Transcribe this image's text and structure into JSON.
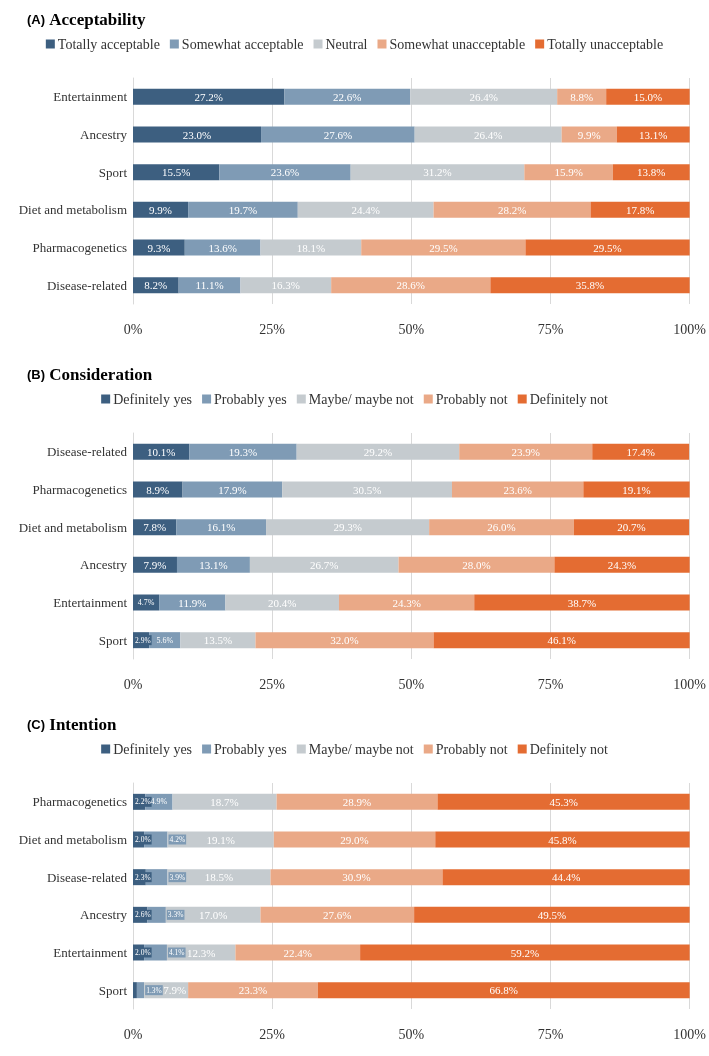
{
  "chart_data": [
    {
      "type": "bar",
      "title": "(A) Acceptability",
      "orientation": "horizontal",
      "stacked": true,
      "legend": "top",
      "grid": "x",
      "categories": [
        "Entertainment",
        "Ancestry",
        "Sport",
        "Diet and metabolism",
        "Pharmacogenetics",
        "Disease-related"
      ],
      "xlim": [
        0,
        100
      ],
      "xticks": [
        {
          "value": 0,
          "label": "0%"
        },
        {
          "value": 25,
          "label": "25%"
        },
        {
          "value": 50,
          "label": "50%"
        },
        {
          "value": 75,
          "label": "75%"
        },
        {
          "value": 100,
          "label": "100%"
        }
      ],
      "series": [
        {
          "name": "Totally acceptable",
          "color": "#3d5f80",
          "values": [
            27.2,
            23.0,
            15.5,
            9.9,
            9.3,
            8.2
          ],
          "value_labels": [
            "27.2%",
            "23.0%",
            "15.5%",
            "9.9%",
            "9.3%",
            "8.2%"
          ]
        },
        {
          "name": "Somewhat acceptable",
          "color": "#7f9bb5",
          "values": [
            22.6,
            27.6,
            23.6,
            19.7,
            13.6,
            11.1
          ],
          "value_labels": [
            "22.6%",
            "27.6%",
            "23.6%",
            "19.7%",
            "13.6%",
            "11.1%"
          ]
        },
        {
          "name": "Neutral",
          "color": "#c5cbcf",
          "values": [
            26.4,
            26.4,
            31.2,
            24.4,
            18.1,
            16.3
          ],
          "value_labels": [
            "26.4%",
            "26.4%",
            "31.2%",
            "24.4%",
            "18.1%",
            "16.3%"
          ]
        },
        {
          "name": "Somewhat unacceptable",
          "color": "#eaa987",
          "values": [
            8.8,
            9.9,
            15.9,
            28.2,
            29.5,
            28.6
          ],
          "value_labels": [
            "8.8%",
            "9.9%",
            "15.9%",
            "28.2%",
            "29.5%",
            "28.6%"
          ]
        },
        {
          "name": "Totally unacceptable",
          "color": "#e46c32",
          "values": [
            15.0,
            13.1,
            13.8,
            17.8,
            29.5,
            35.8
          ],
          "value_labels": [
            "15.0%",
            "13.1%",
            "13.8%",
            "17.8%",
            "29.5%",
            "35.8%"
          ]
        }
      ]
    },
    {
      "type": "bar",
      "title": "(B) Consideration",
      "orientation": "horizontal",
      "stacked": true,
      "legend": "top",
      "grid": "x",
      "categories": [
        "Disease-related",
        "Pharmacogenetics",
        "Diet and metabolism",
        "Ancestry",
        "Entertainment",
        "Sport"
      ],
      "xlim": [
        0,
        100
      ],
      "xticks": [
        {
          "value": 0,
          "label": "0%"
        },
        {
          "value": 25,
          "label": "25%"
        },
        {
          "value": 50,
          "label": "50%"
        },
        {
          "value": 75,
          "label": "75%"
        },
        {
          "value": 100,
          "label": "100%"
        }
      ],
      "series": [
        {
          "name": "Definitely yes",
          "color": "#3d5f80",
          "values": [
            10.1,
            8.9,
            7.8,
            7.9,
            4.7,
            2.9
          ],
          "value_labels": [
            "10.1%",
            "8.9%",
            "7.8%",
            "7.9%",
            "4.7%",
            "2.9%"
          ]
        },
        {
          "name": "Probably yes",
          "color": "#7f9bb5",
          "values": [
            19.3,
            17.9,
            16.1,
            13.1,
            11.9,
            5.6
          ],
          "value_labels": [
            "19.3%",
            "17.9%",
            "16.1%",
            "13.1%",
            "11.9%",
            "5.6%"
          ]
        },
        {
          "name": "Maybe/ maybe not",
          "color": "#c5cbcf",
          "values": [
            29.2,
            30.5,
            29.3,
            26.7,
            20.4,
            13.5
          ],
          "value_labels": [
            "29.2%",
            "30.5%",
            "29.3%",
            "26.7%",
            "20.4%",
            "13.5%"
          ]
        },
        {
          "name": "Probably not",
          "color": "#eaa987",
          "values": [
            23.9,
            23.6,
            26.0,
            28.0,
            24.3,
            32.0
          ],
          "value_labels": [
            "23.9%",
            "23.6%",
            "26.0%",
            "28.0%",
            "24.3%",
            "32.0%"
          ]
        },
        {
          "name": "Definitely not",
          "color": "#e46c32",
          "values": [
            17.4,
            19.1,
            20.7,
            24.3,
            38.7,
            46.1
          ],
          "value_labels": [
            "17.4%",
            "19.1%",
            "20.7%",
            "24.3%",
            "38.7%",
            "46.1%"
          ]
        }
      ]
    },
    {
      "type": "bar",
      "title": "(C) Intention",
      "orientation": "horizontal",
      "stacked": true,
      "legend": "top",
      "grid": "x",
      "categories": [
        "Pharmacogenetics",
        "Diet and metabolism",
        "Disease-related",
        "Ancestry",
        "Entertainment",
        "Sport"
      ],
      "xlim": [
        0,
        100
      ],
      "xticks": [
        {
          "value": 0,
          "label": "0%"
        },
        {
          "value": 25,
          "label": "25%"
        },
        {
          "value": 50,
          "label": "50%"
        },
        {
          "value": 75,
          "label": "75%"
        },
        {
          "value": 100,
          "label": "100%"
        }
      ],
      "series": [
        {
          "name": "Definitely yes",
          "color": "#3d5f80",
          "values": [
            2.2,
            2.0,
            2.3,
            2.6,
            2.0,
            0.7
          ],
          "value_labels": [
            "2.2%",
            "2.0%",
            "2.3%",
            "2.6%",
            "2.0%",
            null
          ]
        },
        {
          "name": "Probably yes",
          "color": "#7f9bb5",
          "values": [
            4.9,
            4.2,
            3.9,
            3.3,
            4.1,
            1.3
          ],
          "value_labels": [
            "4.9%",
            "4.2%",
            "3.9%",
            "3.3%",
            "4.1%",
            "1.3%"
          ]
        },
        {
          "name": "Maybe/ maybe not",
          "color": "#c5cbcf",
          "values": [
            18.7,
            19.1,
            18.5,
            17.0,
            12.3,
            7.9
          ],
          "value_labels": [
            "18.7%",
            "19.1%",
            "18.5%",
            "17.0%",
            "12.3%",
            "7.9%"
          ]
        },
        {
          "name": "Probably not",
          "color": "#eaa987",
          "values": [
            28.9,
            29.0,
            30.9,
            27.6,
            22.4,
            23.3
          ],
          "value_labels": [
            "28.9%",
            "29.0%",
            "30.9%",
            "27.6%",
            "22.4%",
            "23.3%"
          ]
        },
        {
          "name": "Definitely not",
          "color": "#e46c32",
          "values": [
            45.3,
            45.8,
            44.4,
            49.5,
            59.2,
            66.8
          ],
          "value_labels": [
            "45.3%",
            "45.8%",
            "44.4%",
            "49.5%",
            "59.2%",
            "66.8%"
          ]
        }
      ]
    }
  ]
}
